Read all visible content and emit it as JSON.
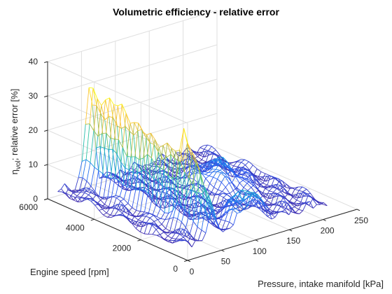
{
  "chart_data": {
    "type": "surface",
    "title": "Volumetric efficiency - relative error",
    "xlabel": "Pressure, intake manifold [kPa]",
    "ylabel": "Engine speed [rpm]",
    "zlabel_main": "η",
    "zlabel_sub": "vol",
    "zlabel_rest": "; relative error [%]",
    "xlim": [
      0,
      250
    ],
    "ylim": [
      0,
      6000
    ],
    "zlim": [
      0,
      40
    ],
    "xticks": [
      0,
      50,
      100,
      150,
      200,
      250
    ],
    "yticks": [
      0,
      2000,
      4000,
      6000
    ],
    "zticks": [
      0,
      10,
      20,
      30,
      40
    ],
    "grid": true,
    "box": true,
    "colormap": "parula",
    "colors": [
      "#3e26a8",
      "#2c5ff6",
      "#139ede",
      "#30c5a4",
      "#aabd45",
      "#fdc239",
      "#f9fb15"
    ],
    "mesh_x_range": [
      15,
      230
    ],
    "mesh_y_range": [
      700,
      6000
    ],
    "ridges": [
      {
        "x_center": 62,
        "x_width": 9,
        "y_start": 2000,
        "y_end": 6000,
        "peak": 27.5,
        "falloff_rpm": 1100
      },
      {
        "x_center": 120,
        "x_width": 22,
        "y_center": 900,
        "y_width": 700,
        "peak": 9
      },
      {
        "x_center": 170,
        "x_width": 26,
        "y_center": 3600,
        "y_width": 900,
        "peak": 6
      }
    ]
  }
}
